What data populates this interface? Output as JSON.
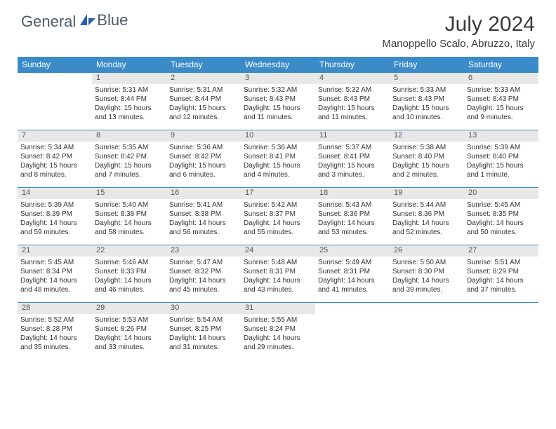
{
  "brand": {
    "name1": "General",
    "name2": "Blue"
  },
  "title": "July 2024",
  "location": "Manoppello Scalo, Abruzzo, Italy",
  "colors": {
    "header_bg": "#3b8bc9",
    "header_text": "#ffffff",
    "daynum_bg": "#e8e8e8",
    "row_border": "#3b8bc9",
    "logo_text": "#4a5a6a",
    "logo_accent": "#2a5fa8"
  },
  "day_headers": [
    "Sunday",
    "Monday",
    "Tuesday",
    "Wednesday",
    "Thursday",
    "Friday",
    "Saturday"
  ],
  "weeks": [
    {
      "nums": [
        "",
        "1",
        "2",
        "3",
        "4",
        "5",
        "6"
      ],
      "cells": [
        null,
        {
          "sunrise": "Sunrise: 5:31 AM",
          "sunset": "Sunset: 8:44 PM",
          "day1": "Daylight: 15 hours",
          "day2": "and 13 minutes."
        },
        {
          "sunrise": "Sunrise: 5:31 AM",
          "sunset": "Sunset: 8:44 PM",
          "day1": "Daylight: 15 hours",
          "day2": "and 12 minutes."
        },
        {
          "sunrise": "Sunrise: 5:32 AM",
          "sunset": "Sunset: 8:43 PM",
          "day1": "Daylight: 15 hours",
          "day2": "and 11 minutes."
        },
        {
          "sunrise": "Sunrise: 5:32 AM",
          "sunset": "Sunset: 8:43 PM",
          "day1": "Daylight: 15 hours",
          "day2": "and 11 minutes."
        },
        {
          "sunrise": "Sunrise: 5:33 AM",
          "sunset": "Sunset: 8:43 PM",
          "day1": "Daylight: 15 hours",
          "day2": "and 10 minutes."
        },
        {
          "sunrise": "Sunrise: 5:33 AM",
          "sunset": "Sunset: 8:43 PM",
          "day1": "Daylight: 15 hours",
          "day2": "and 9 minutes."
        }
      ]
    },
    {
      "nums": [
        "7",
        "8",
        "9",
        "10",
        "11",
        "12",
        "13"
      ],
      "cells": [
        {
          "sunrise": "Sunrise: 5:34 AM",
          "sunset": "Sunset: 8:42 PM",
          "day1": "Daylight: 15 hours",
          "day2": "and 8 minutes."
        },
        {
          "sunrise": "Sunrise: 5:35 AM",
          "sunset": "Sunset: 8:42 PM",
          "day1": "Daylight: 15 hours",
          "day2": "and 7 minutes."
        },
        {
          "sunrise": "Sunrise: 5:36 AM",
          "sunset": "Sunset: 8:42 PM",
          "day1": "Daylight: 15 hours",
          "day2": "and 6 minutes."
        },
        {
          "sunrise": "Sunrise: 5:36 AM",
          "sunset": "Sunset: 8:41 PM",
          "day1": "Daylight: 15 hours",
          "day2": "and 4 minutes."
        },
        {
          "sunrise": "Sunrise: 5:37 AM",
          "sunset": "Sunset: 8:41 PM",
          "day1": "Daylight: 15 hours",
          "day2": "and 3 minutes."
        },
        {
          "sunrise": "Sunrise: 5:38 AM",
          "sunset": "Sunset: 8:40 PM",
          "day1": "Daylight: 15 hours",
          "day2": "and 2 minutes."
        },
        {
          "sunrise": "Sunrise: 5:39 AM",
          "sunset": "Sunset: 8:40 PM",
          "day1": "Daylight: 15 hours",
          "day2": "and 1 minute."
        }
      ]
    },
    {
      "nums": [
        "14",
        "15",
        "16",
        "17",
        "18",
        "19",
        "20"
      ],
      "cells": [
        {
          "sunrise": "Sunrise: 5:39 AM",
          "sunset": "Sunset: 8:39 PM",
          "day1": "Daylight: 14 hours",
          "day2": "and 59 minutes."
        },
        {
          "sunrise": "Sunrise: 5:40 AM",
          "sunset": "Sunset: 8:38 PM",
          "day1": "Daylight: 14 hours",
          "day2": "and 58 minutes."
        },
        {
          "sunrise": "Sunrise: 5:41 AM",
          "sunset": "Sunset: 8:38 PM",
          "day1": "Daylight: 14 hours",
          "day2": "and 56 minutes."
        },
        {
          "sunrise": "Sunrise: 5:42 AM",
          "sunset": "Sunset: 8:37 PM",
          "day1": "Daylight: 14 hours",
          "day2": "and 55 minutes."
        },
        {
          "sunrise": "Sunrise: 5:43 AM",
          "sunset": "Sunset: 8:36 PM",
          "day1": "Daylight: 14 hours",
          "day2": "and 53 minutes."
        },
        {
          "sunrise": "Sunrise: 5:44 AM",
          "sunset": "Sunset: 8:36 PM",
          "day1": "Daylight: 14 hours",
          "day2": "and 52 minutes."
        },
        {
          "sunrise": "Sunrise: 5:45 AM",
          "sunset": "Sunset: 8:35 PM",
          "day1": "Daylight: 14 hours",
          "day2": "and 50 minutes."
        }
      ]
    },
    {
      "nums": [
        "21",
        "22",
        "23",
        "24",
        "25",
        "26",
        "27"
      ],
      "cells": [
        {
          "sunrise": "Sunrise: 5:45 AM",
          "sunset": "Sunset: 8:34 PM",
          "day1": "Daylight: 14 hours",
          "day2": "and 48 minutes."
        },
        {
          "sunrise": "Sunrise: 5:46 AM",
          "sunset": "Sunset: 8:33 PM",
          "day1": "Daylight: 14 hours",
          "day2": "and 46 minutes."
        },
        {
          "sunrise": "Sunrise: 5:47 AM",
          "sunset": "Sunset: 8:32 PM",
          "day1": "Daylight: 14 hours",
          "day2": "and 45 minutes."
        },
        {
          "sunrise": "Sunrise: 5:48 AM",
          "sunset": "Sunset: 8:31 PM",
          "day1": "Daylight: 14 hours",
          "day2": "and 43 minutes."
        },
        {
          "sunrise": "Sunrise: 5:49 AM",
          "sunset": "Sunset: 8:31 PM",
          "day1": "Daylight: 14 hours",
          "day2": "and 41 minutes."
        },
        {
          "sunrise": "Sunrise: 5:50 AM",
          "sunset": "Sunset: 8:30 PM",
          "day1": "Daylight: 14 hours",
          "day2": "and 39 minutes."
        },
        {
          "sunrise": "Sunrise: 5:51 AM",
          "sunset": "Sunset: 8:29 PM",
          "day1": "Daylight: 14 hours",
          "day2": "and 37 minutes."
        }
      ]
    },
    {
      "nums": [
        "28",
        "29",
        "30",
        "31",
        "",
        "",
        ""
      ],
      "cells": [
        {
          "sunrise": "Sunrise: 5:52 AM",
          "sunset": "Sunset: 8:28 PM",
          "day1": "Daylight: 14 hours",
          "day2": "and 35 minutes."
        },
        {
          "sunrise": "Sunrise: 5:53 AM",
          "sunset": "Sunset: 8:26 PM",
          "day1": "Daylight: 14 hours",
          "day2": "and 33 minutes."
        },
        {
          "sunrise": "Sunrise: 5:54 AM",
          "sunset": "Sunset: 8:25 PM",
          "day1": "Daylight: 14 hours",
          "day2": "and 31 minutes."
        },
        {
          "sunrise": "Sunrise: 5:55 AM",
          "sunset": "Sunset: 8:24 PM",
          "day1": "Daylight: 14 hours",
          "day2": "and 29 minutes."
        },
        null,
        null,
        null
      ]
    }
  ]
}
